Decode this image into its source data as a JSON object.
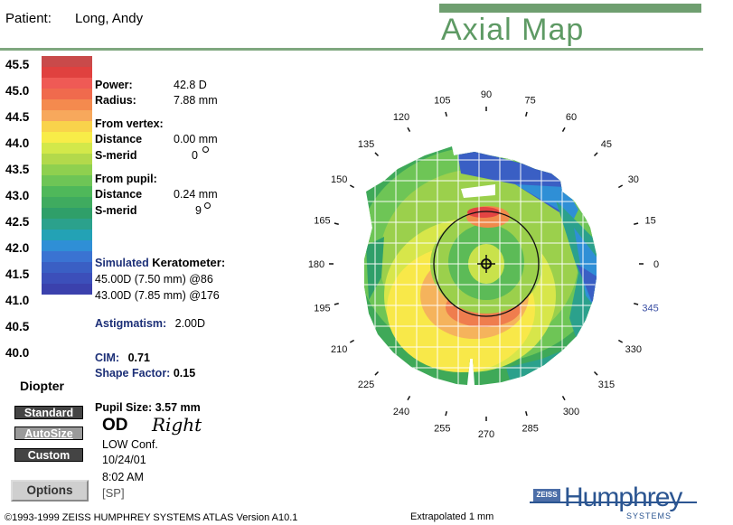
{
  "header": {
    "patient_label": "Patient:",
    "patient_name": "Long, Andy",
    "title": "Axial Map"
  },
  "scale": {
    "labels": [
      "45.5",
      "45.0",
      "44.5",
      "44.0",
      "43.5",
      "43.0",
      "42.5",
      "42.0",
      "41.5",
      "41.0",
      "40.5",
      "40.0"
    ],
    "colors": [
      "#c94a4a",
      "#e0413f",
      "#ef5a55",
      "#f06a4d",
      "#f48a4e",
      "#f7a85c",
      "#f9d34b",
      "#f8ec48",
      "#d3e84a",
      "#b3d94b",
      "#8fd04f",
      "#6ec556",
      "#4fb85a",
      "#3fab5f",
      "#2f9f69",
      "#2ba18c",
      "#23a2b5",
      "#2f8fd6",
      "#3a73d2",
      "#3a5fc4",
      "#3c4fba",
      "#3b41ad"
    ],
    "unit": "Diopter"
  },
  "info": {
    "power_label": "Power:",
    "power_value": "42.8 D",
    "radius_label": "Radius:",
    "radius_value": "7.88 mm",
    "from_vertex": "From vertex:",
    "vertex_distance_label": "Distance",
    "vertex_distance_value": "0.00 mm",
    "vertex_smerid_label": "S-merid",
    "vertex_smerid_value": "0",
    "from_pupil": "From pupil:",
    "pupil_distance_label": "Distance",
    "pupil_distance_value": "0.24 mm",
    "pupil_smerid_label": "S-merid",
    "pupil_smerid_value": "9",
    "sim_k_label_1": "Simulated",
    "sim_k_label_2": "Keratometer:",
    "sim_k_line1": "45.00D (7.50 mm) @86",
    "sim_k_line2": "43.00D (7.85 mm) @176",
    "astig_label": "Astigmatism:",
    "astig_value": "2.00D",
    "cim_label": "CIM:",
    "cim_value": "0.71",
    "shape_label": "Shape Factor:",
    "shape_value": "0.15",
    "pupil_size_label": "Pupil Size:",
    "pupil_size_value": "3.57 mm",
    "eye": "OD",
    "eye_note": "Right",
    "confidence": "LOW Conf.",
    "date": "10/24/01",
    "time": "8:02 AM",
    "code": "[SP]"
  },
  "buttons": {
    "standard": "Standard",
    "autosize": "AutoSize",
    "custom": "Custom",
    "options": "Options"
  },
  "map": {
    "axis_labels": [
      "0",
      "15",
      "30",
      "45",
      "60",
      "75",
      "90",
      "105",
      "120",
      "135",
      "150",
      "165",
      "180",
      "195",
      "210",
      "225",
      "240",
      "255",
      "270",
      "285",
      "300",
      "315",
      "330",
      "345"
    ],
    "highlight_label": "345",
    "highlight_color": "#3a4fa3"
  },
  "footer": {
    "copyright": "©1993-1999 ZEISS HUMPHREY SYSTEMS ATLAS  Version A10.1",
    "extrapolated": "Extrapolated 1 mm",
    "logo_badge": "ZEISS",
    "logo_name": "Humphrey",
    "logo_sub": "SYSTEMS"
  }
}
